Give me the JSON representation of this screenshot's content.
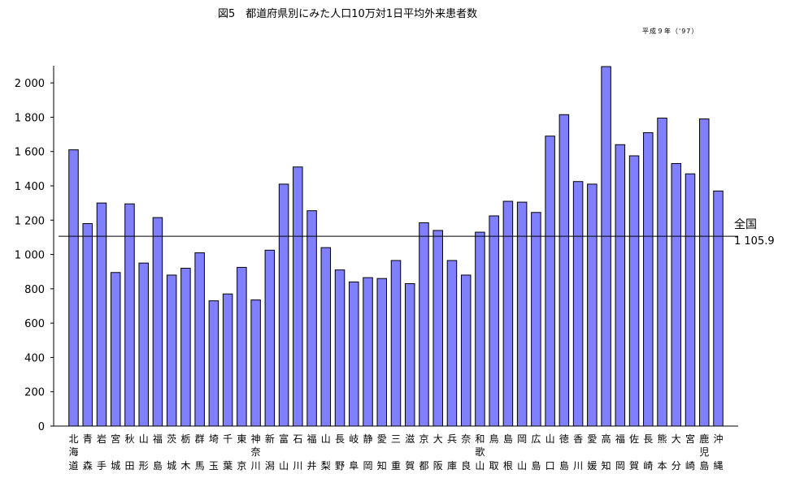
{
  "title": "図5　都道府県別にみた人口10万対1日平均外来患者数",
  "subtitle": "平成９年（'97）",
  "chart_data": {
    "type": "bar",
    "title": "図5　都道府県別にみた人口10万対1日平均外来患者数",
    "xlabel": "",
    "ylabel": "",
    "ylim": [
      0,
      2100
    ],
    "yticks": [
      "0",
      "200",
      "400",
      "600",
      "800",
      "1 000",
      "1 200",
      "1 400",
      "1 600",
      "1 800",
      "2 000"
    ],
    "grid": false,
    "bar_color": "#8080ff",
    "categories": [
      "北海道",
      "青森",
      "岩手",
      "宮城",
      "秋田",
      "山形",
      "福島",
      "茨城",
      "栃木",
      "群馬",
      "埼玉",
      "千葉",
      "東京",
      "神奈川",
      "新潟",
      "富山",
      "石川",
      "福井",
      "山梨",
      "長野",
      "岐阜",
      "静岡",
      "愛知",
      "三重",
      "滋賀",
      "京都",
      "大阪",
      "兵庫",
      "奈良",
      "和歌山",
      "鳥取",
      "島根",
      "岡山",
      "広島",
      "山口",
      "徳島",
      "香川",
      "愛媛",
      "高知",
      "福岡",
      "佐賀",
      "長崎",
      "熊本",
      "大分",
      "宮崎",
      "鹿児島",
      "沖縄"
    ],
    "values": [
      1610,
      1180,
      1300,
      895,
      1295,
      950,
      1215,
      880,
      920,
      1010,
      730,
      770,
      925,
      735,
      1025,
      1410,
      1510,
      1255,
      1040,
      910,
      840,
      865,
      860,
      965,
      830,
      1185,
      1140,
      965,
      880,
      1130,
      1225,
      1310,
      1305,
      1245,
      1690,
      1815,
      1425,
      1410,
      2095,
      1640,
      1575,
      1710,
      1795,
      1530,
      1470,
      1790,
      1370
    ],
    "reference_line": {
      "label": "全国",
      "value_label": "1 105.9",
      "value": 1105.9
    }
  }
}
